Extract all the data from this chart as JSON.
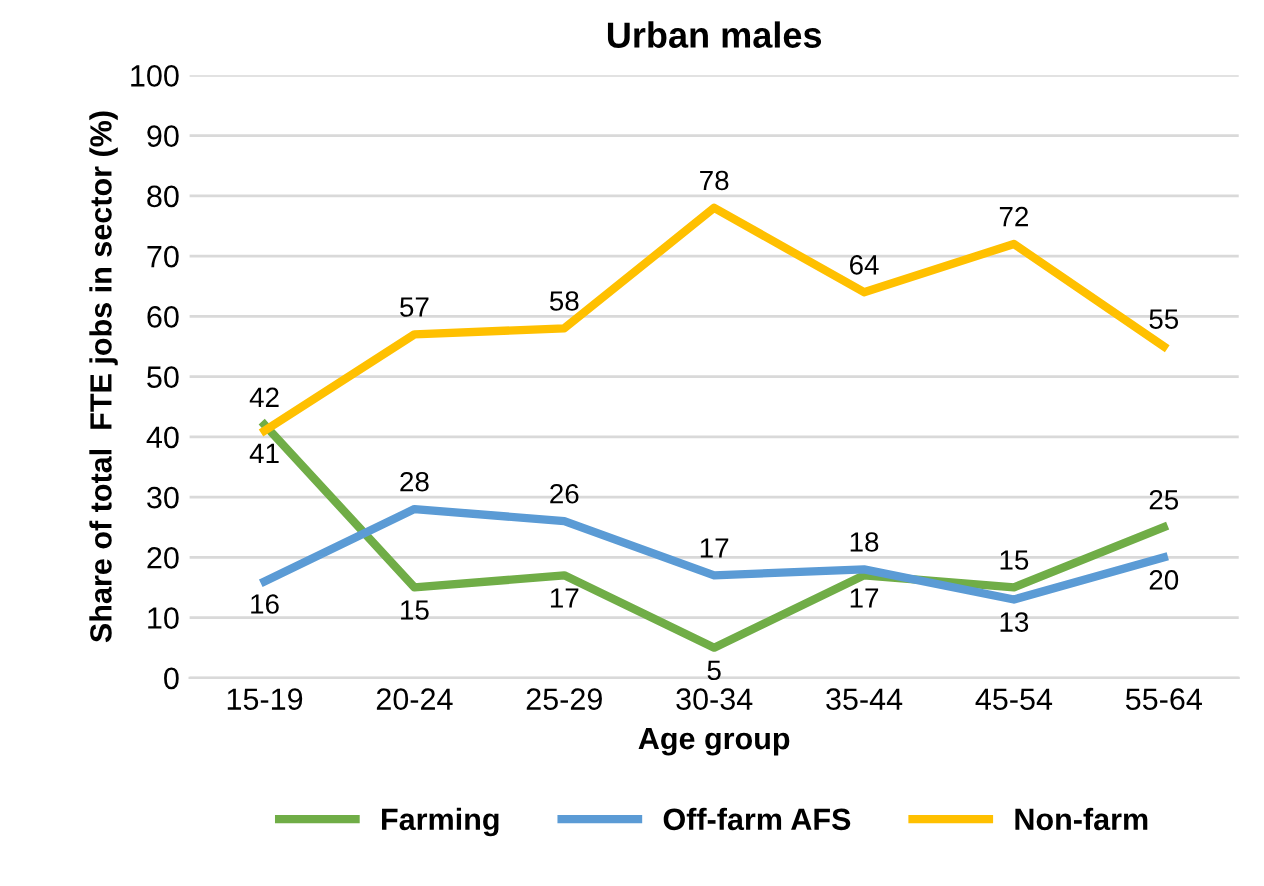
{
  "chart_data": {
    "type": "line",
    "title": "Urban males",
    "xlabel": "Age group",
    "ylabel": "Share of total  FTE jobs in sector (%)",
    "categories": [
      "15-19",
      "20-24",
      "25-29",
      "30-34",
      "35-44",
      "45-54",
      "55-64"
    ],
    "series": [
      {
        "name": "Farming",
        "color": "#70ad47",
        "values": [
          42,
          15,
          17,
          5,
          17,
          15,
          25
        ]
      },
      {
        "name": "Off-farm AFS",
        "color": "#5b9bd5",
        "values": [
          16,
          28,
          26,
          17,
          18,
          13,
          20
        ]
      },
      {
        "name": "Non-farm",
        "color": "#ffc000",
        "values": [
          41,
          57,
          58,
          78,
          64,
          72,
          55
        ]
      }
    ],
    "ylim": [
      0,
      100
    ],
    "yticks": [
      0,
      10,
      20,
      30,
      40,
      50,
      60,
      70,
      80,
      90,
      100
    ],
    "grid": "y",
    "legend": "bottom",
    "data_labels": true,
    "marker": "none",
    "line_style": "solid"
  }
}
